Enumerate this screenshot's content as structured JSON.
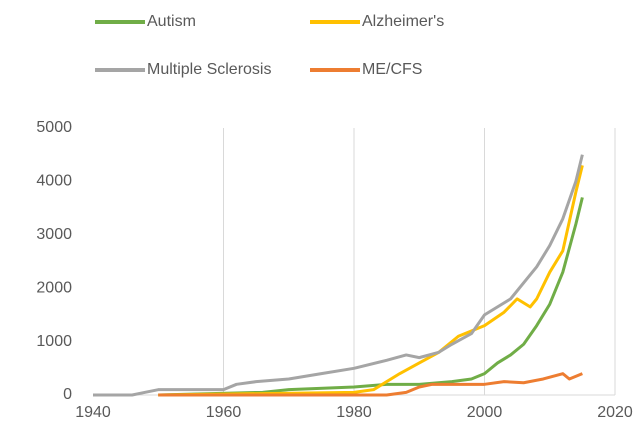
{
  "chart_data": {
    "type": "line",
    "xlim": [
      1940,
      2020
    ],
    "xticks": [
      1940,
      1960,
      1980,
      2000,
      2020
    ],
    "ylim": [
      0,
      5000
    ],
    "yticks": [
      0,
      1000,
      2000,
      3000,
      4000,
      5000
    ],
    "grid": "x",
    "series": [
      {
        "name": "Autism",
        "color": "#70ad47",
        "x": [
          1950,
          1966,
          1970,
          1980,
          1985,
          1990,
          1995,
          1998,
          2000,
          2002,
          2004,
          2006,
          2008,
          2010,
          2012,
          2014,
          2015
        ],
        "values": [
          0,
          50,
          100,
          150,
          200,
          200,
          250,
          300,
          400,
          600,
          750,
          950,
          1300,
          1700,
          2300,
          3200,
          3700
        ]
      },
      {
        "name": "Alzheimer's",
        "color": "#ffc000",
        "x": [
          1950,
          1980,
          1983,
          1985,
          1987,
          1990,
          1993,
          1996,
          2000,
          2003,
          2005,
          2007,
          2008,
          2010,
          2012,
          2014,
          2015
        ],
        "values": [
          0,
          50,
          100,
          250,
          400,
          600,
          800,
          1100,
          1300,
          1550,
          1800,
          1650,
          1800,
          2300,
          2700,
          3800,
          4300
        ]
      },
      {
        "name": "Multiple Sclerosis",
        "color": "#a5a5a5",
        "x": [
          1940,
          1946,
          1948,
          1950,
          1960,
          1962,
          1965,
          1970,
          1975,
          1980,
          1985,
          1988,
          1990,
          1993,
          1995,
          1998,
          2000,
          2002,
          2004,
          2006,
          2008,
          2010,
          2012,
          2014,
          2015
        ],
        "values": [
          0,
          0,
          50,
          100,
          100,
          200,
          250,
          300,
          400,
          500,
          650,
          750,
          700,
          800,
          950,
          1150,
          1500,
          1650,
          1800,
          2100,
          2400,
          2800,
          3300,
          4000,
          4500
        ]
      },
      {
        "name": "ME/CFS",
        "color": "#ed7d31",
        "x": [
          1950,
          1985,
          1988,
          1990,
          1992,
          1995,
          2000,
          2003,
          2006,
          2009,
          2012,
          2013,
          2015
        ],
        "values": [
          0,
          0,
          50,
          150,
          200,
          200,
          200,
          250,
          230,
          300,
          400,
          300,
          400
        ]
      }
    ]
  }
}
